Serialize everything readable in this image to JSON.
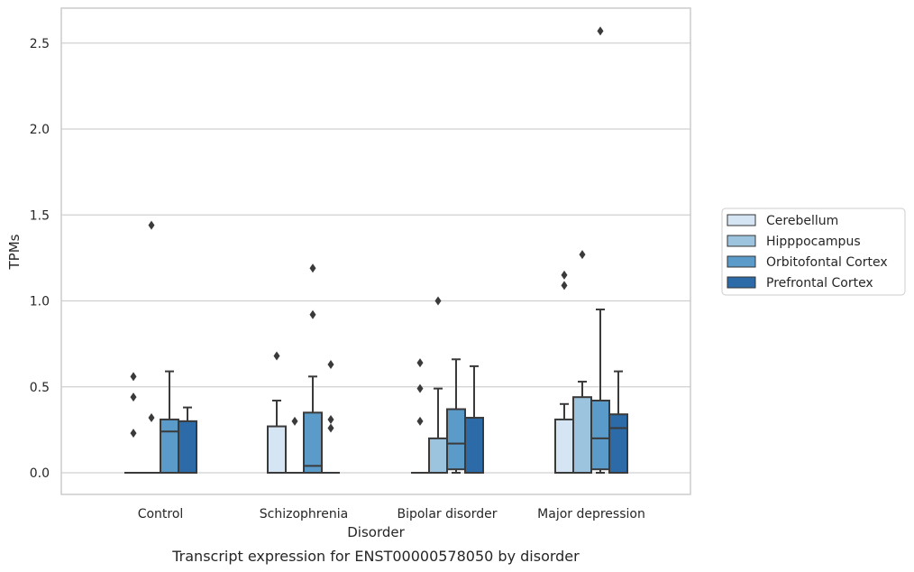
{
  "chart_data": {
    "type": "box",
    "caption": "Transcript expression for ENST00000578050 by disorder",
    "xlabel": "Disorder",
    "ylabel": "TPMs",
    "ylim": [
      -0.12,
      2.7
    ],
    "yticks": [
      "0.0",
      "0.5",
      "1.0",
      "1.5",
      "2.0",
      "2.5"
    ],
    "grid": true,
    "legend_position": "right",
    "categories": [
      "Control",
      "Schizophrenia",
      "Bipolar disorder",
      "Major depression"
    ],
    "series": [
      {
        "name": "Cerebellum",
        "color": "#d6e5f4",
        "boxes": [
          {
            "q1": 0,
            "median": 0,
            "q3": 0,
            "whisker_low": 0,
            "whisker_high": 0,
            "outliers": [
              0.23,
              0.44,
              0.56
            ]
          },
          {
            "q1": 0,
            "median": 0,
            "q3": 0.27,
            "whisker_low": 0,
            "whisker_high": 0.42,
            "outliers": [
              0.68
            ]
          },
          {
            "q1": 0,
            "median": 0,
            "q3": 0,
            "whisker_low": 0,
            "whisker_high": 0,
            "outliers": [
              0.3,
              0.49,
              0.64
            ]
          },
          {
            "q1": 0,
            "median": 0,
            "q3": 0.31,
            "whisker_low": 0,
            "whisker_high": 0.4,
            "outliers": [
              1.09,
              1.15
            ]
          }
        ]
      },
      {
        "name": "Hipppocampus",
        "color": "#9cc4de",
        "boxes": [
          {
            "q1": 0,
            "median": 0,
            "q3": 0,
            "whisker_low": 0,
            "whisker_high": 0,
            "outliers": [
              0.32,
              1.44
            ]
          },
          {
            "q1": 0,
            "median": 0,
            "q3": 0,
            "whisker_low": 0,
            "whisker_high": 0,
            "outliers": [
              0.3
            ]
          },
          {
            "q1": 0,
            "median": 0,
            "q3": 0.2,
            "whisker_low": 0,
            "whisker_high": 0.49,
            "outliers": [
              1.0
            ]
          },
          {
            "q1": 0,
            "median": 0,
            "q3": 0.44,
            "whisker_low": 0,
            "whisker_high": 0.53,
            "outliers": [
              1.27
            ]
          }
        ]
      },
      {
        "name": "Orbitofontal Cortex",
        "color": "#5a9bc9",
        "boxes": [
          {
            "q1": 0,
            "median": 0.24,
            "q3": 0.31,
            "whisker_low": 0,
            "whisker_high": 0.59,
            "outliers": []
          },
          {
            "q1": 0,
            "median": 0.04,
            "q3": 0.35,
            "whisker_low": 0,
            "whisker_high": 0.56,
            "outliers": [
              0.92,
              1.19
            ]
          },
          {
            "q1": 0.02,
            "median": 0.17,
            "q3": 0.37,
            "whisker_low": 0,
            "whisker_high": 0.66,
            "outliers": []
          },
          {
            "q1": 0.02,
            "median": 0.2,
            "q3": 0.42,
            "whisker_low": 0,
            "whisker_high": 0.95,
            "outliers": [
              2.57
            ]
          }
        ]
      },
      {
        "name": "Prefrontal Cortex",
        "color": "#2c6ba8",
        "boxes": [
          {
            "q1": 0,
            "median": 0,
            "q3": 0.3,
            "whisker_low": 0,
            "whisker_high": 0.38,
            "outliers": []
          },
          {
            "q1": 0,
            "median": 0,
            "q3": 0,
            "whisker_low": 0,
            "whisker_high": 0,
            "outliers": [
              0.26,
              0.31,
              0.63
            ]
          },
          {
            "q1": 0,
            "median": 0,
            "q3": 0.32,
            "whisker_low": 0,
            "whisker_high": 0.62,
            "outliers": []
          },
          {
            "q1": 0,
            "median": 0.26,
            "q3": 0.34,
            "whisker_low": 0,
            "whisker_high": 0.59,
            "outliers": []
          }
        ]
      }
    ]
  }
}
